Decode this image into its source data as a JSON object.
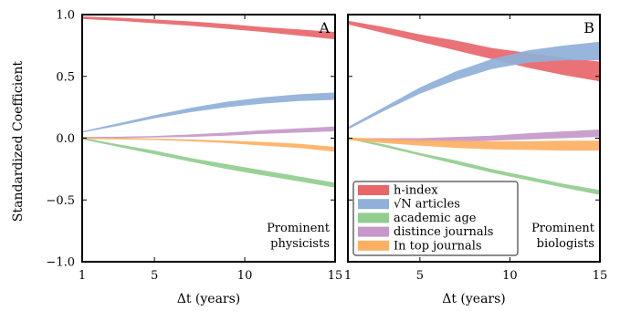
{
  "chart_data": [
    {
      "type": "area",
      "panel_label": "A",
      "annotation": [
        "Prominent",
        "physicists"
      ],
      "xlabel": "Δt (years)",
      "ylabel": "Standardized Coefficient",
      "xlim": [
        1,
        15
      ],
      "ylim": [
        -1.0,
        1.0
      ],
      "xticks": [
        "1",
        "5",
        "10",
        "15"
      ],
      "yticks": [
        "1.0",
        "0.5",
        "0.0",
        "−0.5",
        "−1.0"
      ],
      "x": [
        1,
        3,
        5,
        7,
        9,
        11,
        13,
        15
      ],
      "series": [
        {
          "name": "h-index",
          "color": "#e8666a",
          "lower": [
            0.965,
            0.95,
            0.93,
            0.91,
            0.885,
            0.86,
            0.83,
            0.8
          ],
          "upper": [
            0.985,
            0.975,
            0.96,
            0.945,
            0.925,
            0.9,
            0.88,
            0.86
          ]
        },
        {
          "name": "√N articles",
          "color": "#8fb0d9",
          "lower": [
            0.045,
            0.1,
            0.16,
            0.21,
            0.25,
            0.28,
            0.3,
            0.31
          ],
          "upper": [
            0.055,
            0.12,
            0.185,
            0.245,
            0.295,
            0.33,
            0.355,
            0.37
          ]
        },
        {
          "name": "academic age",
          "color": "#91cd8e",
          "lower": [
            -0.01,
            -0.07,
            -0.13,
            -0.19,
            -0.25,
            -0.3,
            -0.35,
            -0.4
          ],
          "upper": [
            0.005,
            -0.05,
            -0.1,
            -0.16,
            -0.21,
            -0.26,
            -0.31,
            -0.36
          ]
        },
        {
          "name": "distince journals",
          "color": "#c598c9",
          "lower": [
            0.0,
            0.0,
            0.005,
            0.01,
            0.02,
            0.035,
            0.045,
            0.055
          ],
          "upper": [
            0.01,
            0.012,
            0.018,
            0.03,
            0.045,
            0.065,
            0.08,
            0.095
          ]
        },
        {
          "name": "In top journals",
          "color": "#fdb063",
          "lower": [
            -0.005,
            -0.01,
            -0.015,
            -0.025,
            -0.04,
            -0.06,
            -0.08,
            -0.11
          ],
          "upper": [
            0.005,
            0.002,
            -0.003,
            -0.01,
            -0.02,
            -0.03,
            -0.045,
            -0.07
          ]
        }
      ]
    },
    {
      "type": "area",
      "panel_label": "B",
      "annotation": [
        "Prominent",
        "biologists"
      ],
      "xlabel": "Δt (years)",
      "ylabel": "",
      "xlim": [
        1,
        15
      ],
      "ylim": [
        -1.0,
        1.0
      ],
      "xticks": [
        "1",
        "5",
        "10",
        "15"
      ],
      "yticks": [],
      "x": [
        1,
        3,
        5,
        7,
        9,
        11,
        13,
        15
      ],
      "series": [
        {
          "name": "h-index",
          "color": "#e8666a",
          "lower": [
            0.92,
            0.85,
            0.78,
            0.71,
            0.64,
            0.57,
            0.51,
            0.46
          ],
          "upper": [
            0.95,
            0.9,
            0.84,
            0.79,
            0.73,
            0.69,
            0.65,
            0.62
          ]
        },
        {
          "name": "√N articles",
          "color": "#8fb0d9",
          "lower": [
            0.07,
            0.22,
            0.36,
            0.47,
            0.56,
            0.61,
            0.63,
            0.63
          ],
          "upper": [
            0.09,
            0.25,
            0.41,
            0.54,
            0.64,
            0.71,
            0.75,
            0.78
          ]
        },
        {
          "name": "academic age",
          "color": "#91cd8e",
          "lower": [
            -0.005,
            -0.07,
            -0.14,
            -0.21,
            -0.28,
            -0.34,
            -0.4,
            -0.46
          ],
          "upper": [
            0.005,
            -0.05,
            -0.12,
            -0.18,
            -0.25,
            -0.31,
            -0.37,
            -0.42
          ]
        },
        {
          "name": "distince journals",
          "color": "#c598c9",
          "lower": [
            -0.01,
            -0.02,
            -0.03,
            -0.03,
            -0.02,
            -0.01,
            0.0,
            0.01
          ],
          "upper": [
            0.0,
            0.0,
            0.0,
            0.01,
            0.02,
            0.04,
            0.055,
            0.07
          ]
        },
        {
          "name": "In top journals",
          "color": "#fdb063",
          "lower": [
            -0.015,
            -0.04,
            -0.06,
            -0.08,
            -0.09,
            -0.095,
            -0.1,
            -0.1
          ],
          "upper": [
            0.005,
            -0.005,
            -0.015,
            -0.02,
            -0.025,
            -0.025,
            -0.02,
            -0.02
          ]
        }
      ]
    }
  ],
  "legend": {
    "placement": "bottom-left of panel B",
    "items": [
      {
        "label": "h-index",
        "color": "#e8666a"
      },
      {
        "label": "√N articles",
        "color": "#8fb0d9"
      },
      {
        "label": "academic age",
        "color": "#91cd8e"
      },
      {
        "label": "distince journals",
        "color": "#c598c9"
      },
      {
        "label": "In top journals",
        "color": "#fdb063"
      }
    ]
  }
}
